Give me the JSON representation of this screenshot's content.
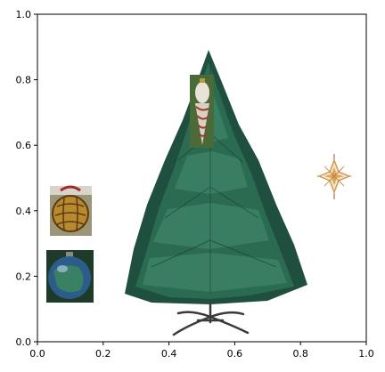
{
  "axes": {
    "xlim": [
      0,
      1
    ],
    "ylim": [
      0,
      1
    ],
    "x_ticks": [
      "0.0",
      "0.2",
      "0.4",
      "0.6",
      "0.8",
      "1.0"
    ],
    "y_ticks": [
      "0.0",
      "0.2",
      "0.4",
      "0.6",
      "0.8",
      "1.0"
    ],
    "grid": false
  },
  "images": [
    {
      "name": "christmas-tree-image",
      "description_kind": "tree"
    },
    {
      "name": "glass-ornament-image",
      "description_kind": "ornament"
    },
    {
      "name": "gold-ornament-image",
      "description_kind": "ornament"
    },
    {
      "name": "blue-ornament-image",
      "description_kind": "ornament"
    },
    {
      "name": "star-ornament-image",
      "description_kind": "star"
    }
  ],
  "colors": {
    "tree_dark": "#1f4f3e",
    "tree_mid": "#2b6b52",
    "tree_light": "#3c8266",
    "stand": "#3a3a3a",
    "gold": "#b8892f",
    "blue": "#2b5c8a",
    "star": "#d08a3a"
  }
}
